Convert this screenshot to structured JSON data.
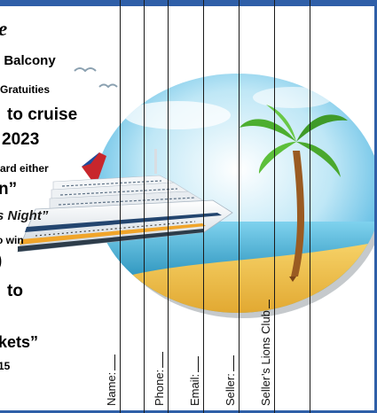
{
  "flyer": {
    "title": "e",
    "room": "/ Balcony",
    "gratuities": "Gratuities",
    "cruise_line": "to cruise",
    "year_line": "2023",
    "award_line": "ard either",
    "quote_line": "n”",
    "night_line": "s Night”",
    "to_win": "o win",
    "paren_line": ")",
    "to_line": "to",
    "tickets_line": "kets”",
    "number_line": "15"
  },
  "stub_fields": {
    "name": "Name:",
    "phone": "Phone:",
    "email": "Email:",
    "seller": "Seller:",
    "seller_club": "Seller’s Lions Club"
  },
  "colors": {
    "frame": "#2f5fa8",
    "sky_top": "#5fc3ea",
    "sea": "#1e8fb8",
    "sand": "#f2c24b",
    "funnel": "#c8262c"
  }
}
